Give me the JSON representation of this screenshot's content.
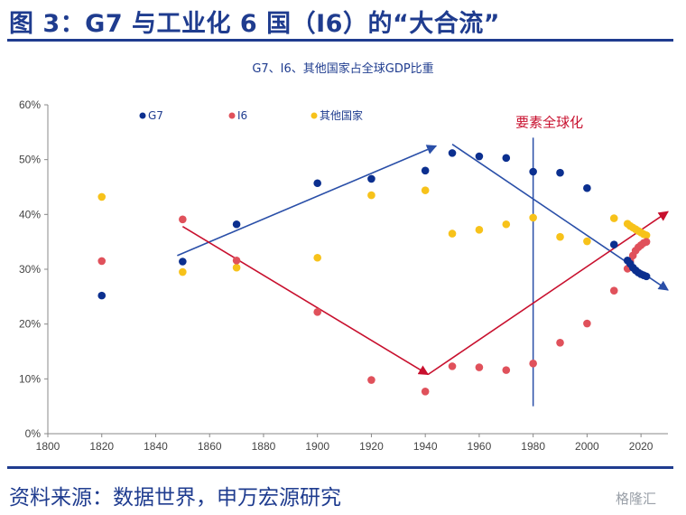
{
  "figure": {
    "title": "图 3：G7 与工业化 6 国（I6）的“大合流”",
    "source": "资料来源：数据世界，申万宏源研究",
    "watermark": "格隆汇"
  },
  "colors": {
    "brand": "#1f3c8f",
    "G7": "#0b2f8f",
    "I6": "#e0515b",
    "other": "#f7c21a",
    "arrow_blue": "#2a4fa8",
    "arrow_red": "#c8102e",
    "marker_line": "#2a4fa8"
  },
  "chart_data": {
    "type": "scatter",
    "title": "G7、I6、其他国家占全球GDP比重",
    "xlim": [
      1800,
      2030
    ],
    "ylim": [
      0,
      60
    ],
    "xticks": [
      1800,
      1820,
      1840,
      1860,
      1880,
      1900,
      1920,
      1940,
      1960,
      1980,
      2000,
      2020
    ],
    "yticks": [
      0,
      10,
      20,
      30,
      40,
      50,
      60
    ],
    "ytick_labels": [
      "0%",
      "10%",
      "20%",
      "30%",
      "40%",
      "50%",
      "60%"
    ],
    "grid": false,
    "legend_position": "top-left",
    "series": [
      {
        "name": "G7",
        "color": "#0b2f8f",
        "points": [
          [
            1820,
            25.2
          ],
          [
            1850,
            31.4
          ],
          [
            1870,
            38.2
          ],
          [
            1900,
            45.7
          ],
          [
            1920,
            46.5
          ],
          [
            1940,
            48.0
          ],
          [
            1950,
            51.2
          ],
          [
            1960,
            50.6
          ],
          [
            1970,
            50.3
          ],
          [
            1980,
            47.8
          ],
          [
            1990,
            47.6
          ],
          [
            2000,
            44.8
          ],
          [
            2010,
            34.5
          ],
          [
            2015,
            31.6
          ],
          [
            2016,
            31.0
          ],
          [
            2017,
            30.3
          ],
          [
            2018,
            29.8
          ],
          [
            2019,
            29.4
          ],
          [
            2020,
            29.1
          ],
          [
            2021,
            28.9
          ],
          [
            2022,
            28.7
          ]
        ]
      },
      {
        "name": "I6",
        "color": "#e0515b",
        "points": [
          [
            1820,
            31.5
          ],
          [
            1850,
            39.1
          ],
          [
            1870,
            31.6
          ],
          [
            1900,
            22.2
          ],
          [
            1920,
            9.8
          ],
          [
            1940,
            7.7
          ],
          [
            1950,
            12.3
          ],
          [
            1960,
            12.1
          ],
          [
            1970,
            11.6
          ],
          [
            1980,
            12.8
          ],
          [
            1990,
            16.6
          ],
          [
            2000,
            20.1
          ],
          [
            2010,
            26.1
          ],
          [
            2015,
            30.1
          ],
          [
            2016,
            31.5
          ],
          [
            2017,
            32.5
          ],
          [
            2018,
            33.4
          ],
          [
            2019,
            34.0
          ],
          [
            2020,
            34.4
          ],
          [
            2021,
            34.8
          ],
          [
            2022,
            35.0
          ]
        ]
      },
      {
        "name": "其他国家",
        "color": "#f7c21a",
        "points": [
          [
            1820,
            43.2
          ],
          [
            1850,
            29.5
          ],
          [
            1870,
            30.3
          ],
          [
            1900,
            32.1
          ],
          [
            1920,
            43.5
          ],
          [
            1940,
            44.4
          ],
          [
            1950,
            36.5
          ],
          [
            1960,
            37.2
          ],
          [
            1970,
            38.2
          ],
          [
            1980,
            39.4
          ],
          [
            1990,
            35.9
          ],
          [
            2000,
            35.1
          ],
          [
            2010,
            39.3
          ],
          [
            2015,
            38.3
          ],
          [
            2016,
            37.9
          ],
          [
            2017,
            37.6
          ],
          [
            2018,
            37.3
          ],
          [
            2019,
            37.0
          ],
          [
            2020,
            36.7
          ],
          [
            2021,
            36.4
          ],
          [
            2022,
            36.2
          ]
        ]
      }
    ],
    "annotations": {
      "vline": {
        "x": 1980,
        "y_range": [
          5,
          54
        ]
      },
      "label": {
        "text": "要素全球化",
        "x": 1986,
        "y": 56
      },
      "arrows": [
        {
          "color": "blue",
          "from": [
            1848,
            32.5
          ],
          "to": [
            1944,
            52.5
          ]
        },
        {
          "color": "blue",
          "from": [
            1950,
            52.8
          ],
          "to": [
            2030,
            26.2
          ]
        },
        {
          "color": "red",
          "from": [
            1850,
            37.8
          ],
          "to": [
            1941,
            10.8
          ]
        },
        {
          "color": "red",
          "from": [
            1941,
            10.8
          ],
          "to": [
            2030,
            40.5
          ]
        }
      ]
    }
  }
}
